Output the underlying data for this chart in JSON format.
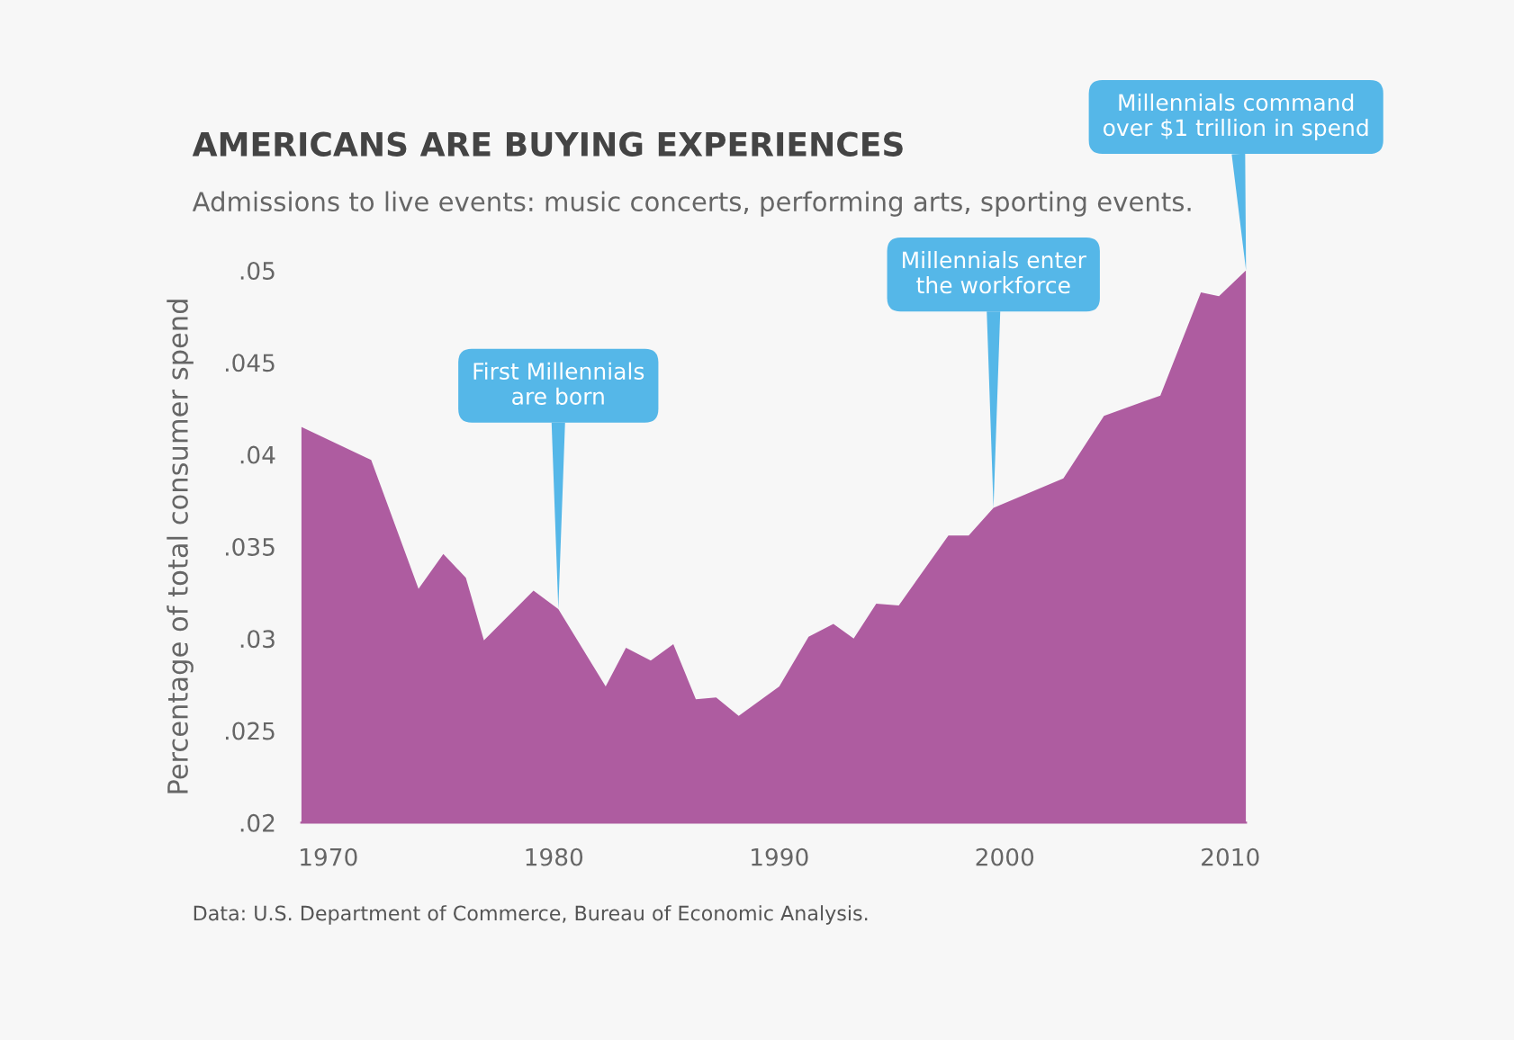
{
  "chart_data": {
    "type": "area",
    "title": "AMERICANS ARE BUYING EXPERIENCES",
    "subtitle": "Admissions to live events: music concerts, performing arts, sporting events.",
    "ylabel": "Percentage of total consumer spend",
    "x": [
      1968.8,
      1968.8,
      1971.9,
      1974.0,
      1975.1,
      1976.1,
      1976.9,
      1979.1,
      1980.2,
      1982.3,
      1983.2,
      1984.3,
      1985.3,
      1986.3,
      1987.2,
      1988.2,
      1990.0,
      1991.3,
      1992.4,
      1993.3,
      1994.3,
      1995.3,
      1997.5,
      1998.4,
      1999.5,
      2002.6,
      2004.4,
      2006.9,
      2008.7,
      2009.5,
      2010.7
    ],
    "series": [
      {
        "color": "#ae5ca0",
        "values": [
          0.05,
          0.0415,
          0.0397,
          0.0327,
          0.0346,
          0.0333,
          0.0299,
          0.0326,
          0.0316,
          0.0274,
          0.0295,
          0.0288,
          0.0297,
          0.0267,
          0.0268,
          0.0258,
          0.0274,
          0.0301,
          0.0308,
          0.03,
          0.0319,
          0.0318,
          0.0356,
          0.0356,
          0.0371,
          0.0387,
          0.0421,
          0.0432,
          0.0488,
          0.0486,
          0.05
        ]
      }
    ],
    "xlim": [
      1968.8,
      2010.7
    ],
    "xticks": [
      1970,
      1980,
      1990,
      2000,
      2010
    ],
    "ylim": [
      0.02,
      0.05
    ],
    "yticks": [
      {
        "value": 0.02,
        "label": ".02"
      },
      {
        "value": 0.025,
        "label": ".025"
      },
      {
        "value": 0.03,
        "label": ".03"
      },
      {
        "value": 0.035,
        "label": ".035"
      },
      {
        "value": 0.04,
        "label": ".04"
      },
      {
        "value": 0.045,
        "label": ".045"
      },
      {
        "value": 0.05,
        "label": ".05"
      }
    ],
    "grid": false,
    "legend": false,
    "annotations": [
      {
        "text": "First Millennials\nare born",
        "x": 1980.2,
        "y": 0.0316
      },
      {
        "text": "Millennials enter\nthe workforce",
        "x": 1999.5,
        "y": 0.0371
      },
      {
        "text": "Millennials command\nover $1 trillion in spend",
        "x": 2010.7,
        "y": 0.05
      },
      "Data: U.S. Department of Commerce, Bureau of Economic Analysis."
    ]
  }
}
